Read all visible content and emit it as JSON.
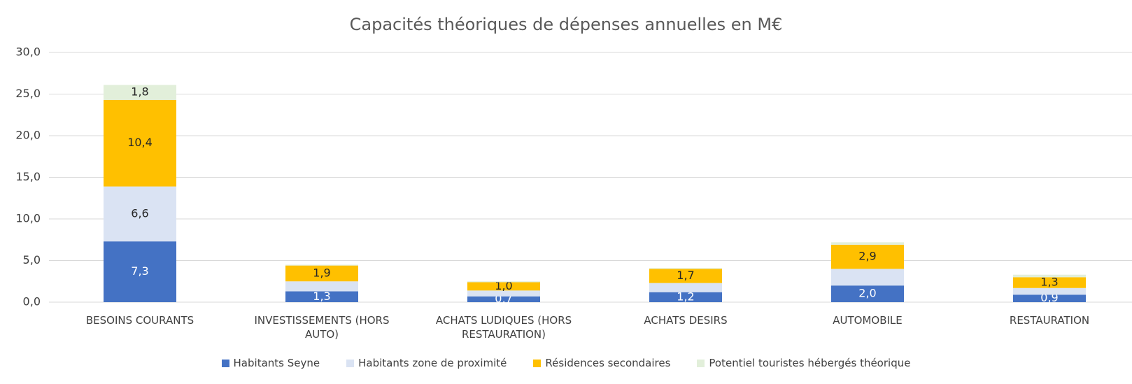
{
  "chart_data": {
    "type": "stacked_bar",
    "title": "Capacités théoriques de dépenses annuelles en M€",
    "categories": [
      "BESOINS COURANTS",
      "INVESTISSEMENTS (HORS AUTO)",
      "ACHATS LUDIQUES (HORS RESTAURATION)",
      "ACHATS DESIRS",
      "AUTOMOBILE",
      "RESTAURATION"
    ],
    "series": [
      {
        "name": "Habitants Seyne",
        "color": "#4472c4",
        "values": [
          7.3,
          1.3,
          0.7,
          1.2,
          2.0,
          0.9
        ],
        "value_labels": [
          "7,3",
          "1,3",
          "0,7",
          "1,2",
          "2,0",
          "0,9"
        ]
      },
      {
        "name": "Habitants zone de proximité",
        "color": "#dae3f3",
        "values": [
          6.6,
          1.2,
          0.7,
          1.1,
          2.0,
          0.8
        ],
        "value_labels": [
          "6,6",
          null,
          null,
          null,
          null,
          null
        ]
      },
      {
        "name": "Résidences secondaires",
        "color": "#ffc000",
        "values": [
          10.4,
          1.9,
          1.0,
          1.7,
          2.9,
          1.3
        ],
        "value_labels": [
          "10,4",
          "1,9",
          "1,0",
          "1,7",
          "2,9",
          "1,3"
        ]
      },
      {
        "name": "Potentiel touristes hébergés théorique",
        "color": "#e2efda",
        "values": [
          1.8,
          0.1,
          0.1,
          0.1,
          0.3,
          0.3
        ],
        "value_labels": [
          "1,8",
          null,
          null,
          null,
          null,
          null
        ]
      }
    ],
    "ylim": [
      0,
      30
    ],
    "yticks": [
      {
        "value": 0,
        "label": "0,0"
      },
      {
        "value": 5,
        "label": "5,0"
      },
      {
        "value": 10,
        "label": "10,0"
      },
      {
        "value": 15,
        "label": "15,0"
      },
      {
        "value": 20,
        "label": "20,0"
      },
      {
        "value": 25,
        "label": "25,0"
      },
      {
        "value": 30,
        "label": "30,0"
      }
    ],
    "grid": true
  }
}
